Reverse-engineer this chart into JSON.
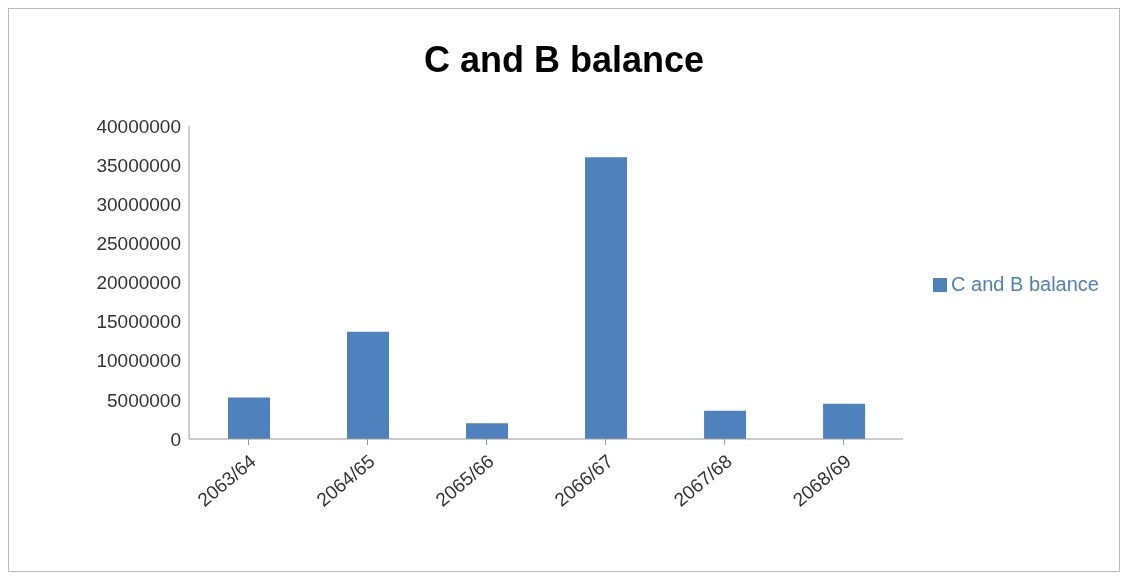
{
  "chart_data": {
    "type": "bar",
    "title": "C and B balance",
    "categories": [
      "2063/64",
      "2064/65",
      "2065/66",
      "2066/67",
      "2067/68",
      "2068/69"
    ],
    "series": [
      {
        "name": "C and B balance",
        "color": "#4f81bd",
        "values": [
          5300000,
          13700000,
          2000000,
          36000000,
          3600000,
          4500000
        ]
      }
    ],
    "ylim": [
      0,
      40000000
    ],
    "yticks": [
      0,
      5000000,
      10000000,
      15000000,
      20000000,
      25000000,
      30000000,
      35000000,
      40000000
    ],
    "grid": false,
    "legend": "right"
  }
}
